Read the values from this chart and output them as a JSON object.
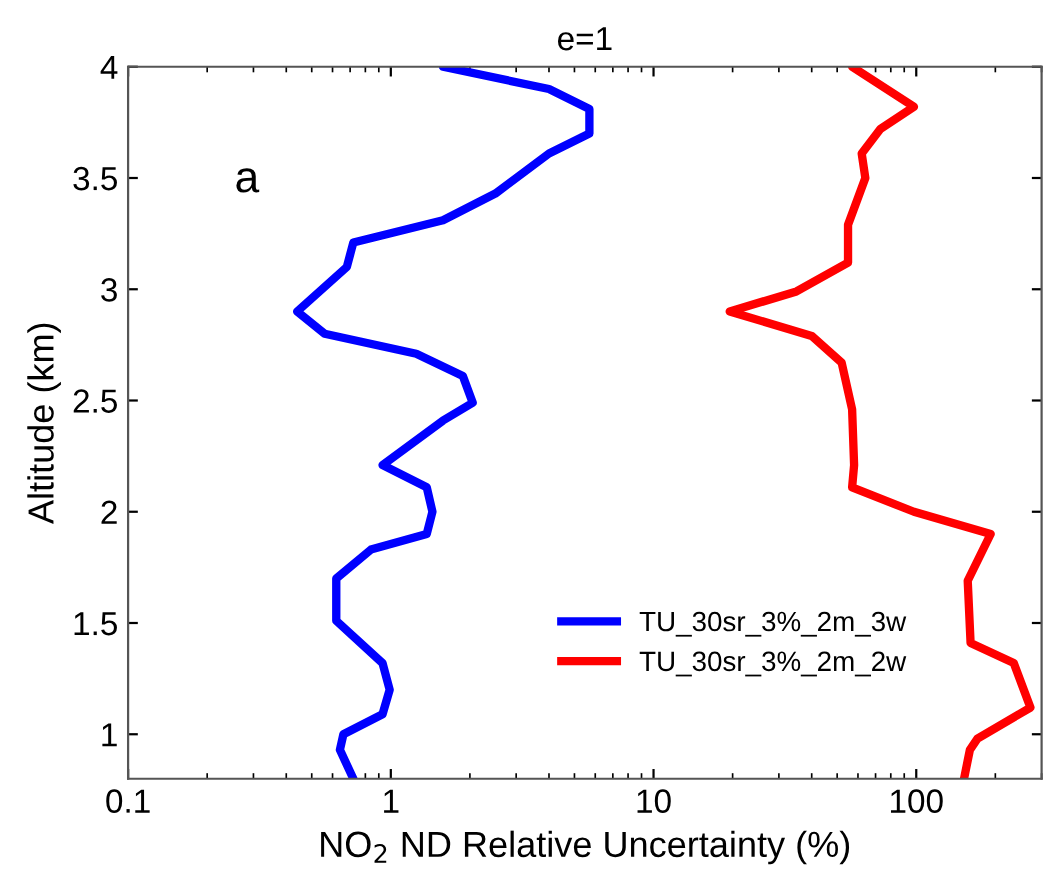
{
  "chart_data": {
    "type": "line",
    "title": "e=1",
    "xlabel": "NO$_{2}$ ND Relative Uncertainty (%)",
    "ylabel": "Altitude (km)",
    "log": "x",
    "xlim": [
      0.1,
      300
    ],
    "xticks": [
      {
        "value": 0.1,
        "label": "0.1"
      },
      1,
      10,
      100
    ],
    "ylim": [
      0.8,
      4
    ],
    "yticks": [
      1,
      1.5,
      2,
      2.5,
      3,
      3.5,
      4
    ],
    "grid": false,
    "legend": "bottom right",
    "line_style": "solid",
    "marker": "none",
    "annotations": [
      "a"
    ],
    "series": [
      {
        "name": "TU_30sr_3%_2m_3w",
        "color": "#0000ff",
        "x": [
          1.58,
          4.0,
          5.7,
          5.7,
          4.0,
          2.5,
          1.58,
          0.72,
          0.68,
          0.44,
          0.56,
          1.25,
          1.88,
          2.05,
          1.58,
          0.93,
          1.37,
          1.44,
          1.37,
          0.84,
          0.62,
          0.62,
          0.93,
          0.99,
          0.93,
          0.66,
          0.64,
          0.72
        ],
        "values": [
          4.0,
          3.9,
          3.81,
          3.7,
          3.61,
          3.43,
          3.31,
          3.21,
          3.1,
          2.9,
          2.8,
          2.71,
          2.61,
          2.49,
          2.41,
          2.21,
          2.11,
          2.0,
          1.9,
          1.83,
          1.7,
          1.51,
          1.32,
          1.2,
          1.09,
          1.0,
          0.93,
          0.8
        ]
      },
      {
        "name": "TU_30sr_3%_2m_2w",
        "color": "#ff0000",
        "x": [
          57,
          98,
          73,
          62,
          64,
          55,
          55,
          35,
          19.5,
          40,
          52,
          57,
          58,
          57,
          98,
          192,
          157,
          161,
          235,
          272,
          171,
          160,
          152
        ],
        "values": [
          4.0,
          3.82,
          3.72,
          3.61,
          3.5,
          3.29,
          3.12,
          2.99,
          2.9,
          2.79,
          2.67,
          2.46,
          2.21,
          2.11,
          2.0,
          1.9,
          1.69,
          1.41,
          1.32,
          1.12,
          0.98,
          0.93,
          0.8
        ]
      }
    ]
  }
}
